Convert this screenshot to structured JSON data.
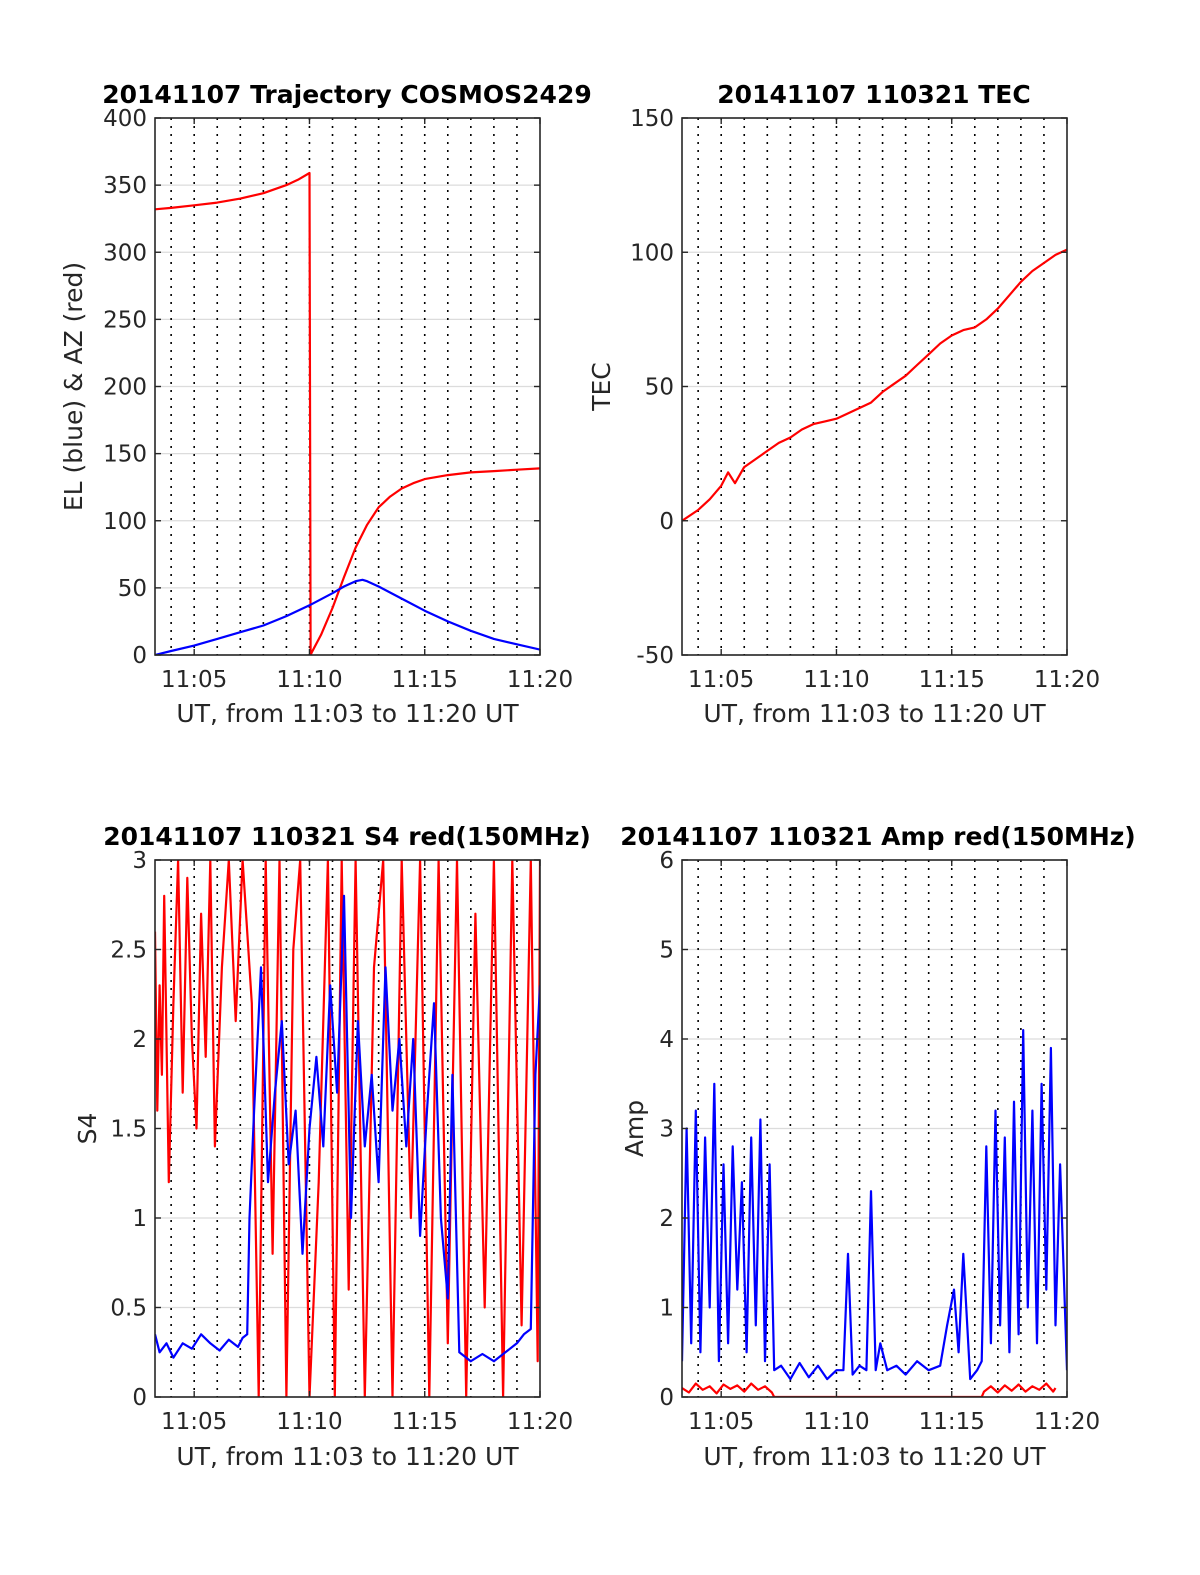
{
  "chart_data": [
    {
      "type": "line",
      "title": "20141107 Trajectory COSMOS2429",
      "xlabel": "UT, from 11:03 to 11:20 UT",
      "ylabel": "EL (blue) & AZ (red)",
      "xlim": [
        3.3,
        20.0
      ],
      "ylim": [
        0,
        400
      ],
      "xticks": [
        5,
        10,
        15,
        20
      ],
      "xtick_labels": [
        "11:05",
        "11:10",
        "11:15",
        "11:20"
      ],
      "yticks": [
        0,
        50,
        100,
        150,
        200,
        250,
        300,
        350,
        400
      ],
      "ytick_labels": [
        "0",
        "50",
        "100",
        "150",
        "200",
        "250",
        "300",
        "350",
        "400"
      ],
      "vgrid_minutes": [
        4,
        5,
        6,
        7,
        8,
        9,
        10,
        11,
        12,
        13,
        14,
        15,
        16,
        17,
        18,
        19
      ],
      "grid": "on",
      "series": [
        {
          "color": "#ff0000",
          "x": [
            3.3,
            4,
            5,
            6,
            7,
            8,
            9,
            9.5,
            10.0,
            10.05,
            10.1,
            10.5,
            11,
            11.5,
            12,
            12.5,
            13,
            13.5,
            14,
            14.5,
            15,
            16,
            17,
            18,
            19,
            20
          ],
          "y": [
            332,
            333,
            335,
            337,
            340,
            344,
            350,
            354,
            359,
            0,
            2,
            15,
            35,
            58,
            80,
            97,
            110,
            118,
            124,
            128,
            131,
            134,
            136,
            137,
            138,
            139
          ]
        },
        {
          "color": "#0000ff",
          "x": [
            3.3,
            4,
            5,
            6,
            7,
            8,
            9,
            10,
            11,
            11.5,
            12,
            12.3,
            12.5,
            13,
            14,
            15,
            16,
            17,
            18,
            19,
            20
          ],
          "y": [
            0,
            3,
            7,
            12,
            17,
            22,
            29,
            37,
            46,
            51,
            55,
            56,
            55,
            51,
            42,
            33,
            25,
            18,
            12,
            8,
            4
          ]
        }
      ]
    },
    {
      "type": "line",
      "title": "20141107 110321 TEC",
      "xlabel": "UT, from 11:03 to 11:20 UT",
      "ylabel": "TEC",
      "xlim": [
        3.3,
        20.0
      ],
      "ylim": [
        -50,
        150
      ],
      "xticks": [
        5,
        10,
        15,
        20
      ],
      "xtick_labels": [
        "11:05",
        "11:10",
        "11:15",
        "11:20"
      ],
      "yticks": [
        -50,
        0,
        50,
        100,
        150
      ],
      "ytick_labels": [
        "-50",
        "0",
        "50",
        "100",
        "150"
      ],
      "vgrid_minutes": [
        4,
        5,
        6,
        7,
        8,
        9,
        10,
        11,
        12,
        13,
        14,
        15,
        16,
        17,
        18,
        19
      ],
      "grid": "on",
      "series": [
        {
          "color": "#ff0000",
          "x": [
            3.3,
            4,
            4.5,
            5,
            5.3,
            5.6,
            6,
            6.5,
            7,
            7.5,
            8,
            8.5,
            9,
            9.5,
            10,
            10.5,
            11,
            11.5,
            12,
            12.5,
            13,
            13.5,
            14,
            14.5,
            15,
            15.5,
            16,
            16.5,
            17,
            17.5,
            18,
            18.5,
            19,
            19.5,
            20
          ],
          "y": [
            0,
            4,
            8,
            13,
            18,
            14,
            20,
            23,
            26,
            29,
            31,
            34,
            36,
            37,
            38,
            40,
            42,
            44,
            48,
            51,
            54,
            58,
            62,
            66,
            69,
            71,
            72,
            75,
            79,
            84,
            89,
            93,
            96,
            99,
            101
          ]
        }
      ]
    },
    {
      "type": "line",
      "title": "20141107 110321 S4 red(150MHz)",
      "xlabel": "UT, from 11:03 to 11:20 UT",
      "ylabel": "S4",
      "xlim": [
        3.3,
        20.0
      ],
      "ylim": [
        0,
        3
      ],
      "xticks": [
        5,
        10,
        15,
        20
      ],
      "xtick_labels": [
        "11:05",
        "11:10",
        "11:15",
        "11:20"
      ],
      "yticks": [
        0,
        0.5,
        1,
        1.5,
        2,
        2.5,
        3
      ],
      "ytick_labels": [
        "0",
        "0.5",
        "1",
        "1.5",
        "2",
        "2.5",
        "3"
      ],
      "vgrid_minutes": [
        4,
        5,
        6,
        7,
        8,
        9,
        10,
        11,
        12,
        13,
        14,
        15,
        16,
        17,
        18,
        19
      ],
      "grid": "on",
      "series": [
        {
          "color": "#ff0000",
          "x": [
            3.3,
            3.4,
            3.5,
            3.6,
            3.7,
            3.9,
            4.1,
            4.3,
            4.5,
            4.7,
            4.9,
            5.1,
            5.3,
            5.5,
            5.7,
            5.9,
            6.2,
            6.5,
            6.8,
            7.1,
            7.5,
            7.8,
            8.1,
            8.4,
            8.7,
            9.0,
            9.3,
            9.6,
            10.0,
            10.4,
            10.8,
            11.1,
            11.4,
            11.7,
            12.0,
            12.4,
            12.8,
            13.2,
            13.6,
            14.0,
            14.4,
            14.8,
            15.2,
            15.6,
            16.0,
            16.4,
            16.8,
            17.2,
            17.6,
            18.0,
            18.4,
            18.8,
            19.2,
            19.6,
            19.9,
            20.0
          ],
          "y": [
            2.6,
            1.6,
            2.3,
            1.8,
            2.8,
            1.2,
            2.2,
            3,
            1.7,
            2.9,
            2.0,
            1.5,
            2.7,
            1.9,
            3,
            1.4,
            2.4,
            3,
            2.1,
            3,
            2.2,
            0,
            3,
            0.8,
            3,
            0,
            2.5,
            3,
            0,
            1.2,
            3,
            0,
            3,
            0.6,
            3,
            0,
            2.4,
            3,
            0,
            3,
            1.0,
            3,
            0,
            3,
            0.3,
            3,
            0,
            2.7,
            0.5,
            3,
            0,
            3,
            0.4,
            3,
            0.2,
            3
          ]
        },
        {
          "color": "#0000ff",
          "x": [
            3.3,
            3.5,
            3.8,
            4.1,
            4.5,
            4.9,
            5.3,
            5.7,
            6.1,
            6.5,
            6.9,
            7.1,
            7.3,
            7.4,
            7.6,
            7.9,
            8.2,
            8.5,
            8.8,
            9.1,
            9.4,
            9.7,
            10.0,
            10.3,
            10.6,
            10.9,
            11.2,
            11.5,
            11.8,
            12.1,
            12.4,
            12.7,
            13.0,
            13.3,
            13.6,
            13.9,
            14.2,
            14.5,
            14.8,
            15.1,
            15.4,
            15.7,
            16.0,
            16.2,
            16.5,
            17.0,
            17.5,
            18.0,
            18.5,
            19.0,
            19.3,
            19.6,
            19.8,
            20.0
          ],
          "y": [
            0.35,
            0.25,
            0.3,
            0.22,
            0.3,
            0.27,
            0.35,
            0.3,
            0.26,
            0.32,
            0.28,
            0.33,
            0.35,
            1.0,
            1.6,
            2.4,
            1.2,
            1.7,
            2.1,
            1.3,
            1.6,
            0.8,
            1.5,
            1.9,
            1.4,
            2.3,
            1.7,
            2.8,
            1.0,
            2.1,
            1.4,
            1.8,
            1.2,
            2.4,
            1.6,
            2.0,
            1.4,
            2.0,
            0.9,
            1.6,
            2.2,
            1.0,
            0.55,
            1.8,
            0.25,
            0.2,
            0.24,
            0.2,
            0.25,
            0.3,
            0.35,
            0.38,
            1.8,
            2.3
          ]
        }
      ]
    },
    {
      "type": "line",
      "title": "20141107 110321 Amp red(150MHz)",
      "xlabel": "UT, from 11:03 to 11:20 UT",
      "ylabel": "Amp",
      "xlim": [
        3.3,
        20.0
      ],
      "ylim": [
        0,
        6
      ],
      "xticks": [
        5,
        10,
        15,
        20
      ],
      "xtick_labels": [
        "11:05",
        "11:10",
        "11:15",
        "11:20"
      ],
      "yticks": [
        0,
        1,
        2,
        3,
        4,
        5,
        6
      ],
      "ytick_labels": [
        "0",
        "1",
        "2",
        "3",
        "4",
        "5",
        "6"
      ],
      "vgrid_minutes": [
        4,
        5,
        6,
        7,
        8,
        9,
        10,
        11,
        12,
        13,
        14,
        15,
        16,
        17,
        18,
        19
      ],
      "grid": "on",
      "series": [
        {
          "color": "#ff0000",
          "x": [
            3.3,
            3.6,
            3.9,
            4.2,
            4.5,
            4.8,
            5.1,
            5.4,
            5.7,
            6.0,
            6.3,
            6.6,
            6.9,
            7.2,
            7.3,
            16.3,
            16.4,
            16.7,
            17.0,
            17.3,
            17.6,
            17.9,
            18.2,
            18.5,
            18.8,
            19.1,
            19.4,
            19.5
          ],
          "y": [
            0.1,
            0.05,
            0.15,
            0.08,
            0.12,
            0.04,
            0.14,
            0.09,
            0.13,
            0.06,
            0.15,
            0.08,
            0.12,
            0.05,
            0.0,
            0.0,
            0.06,
            0.12,
            0.05,
            0.13,
            0.07,
            0.14,
            0.06,
            0.12,
            0.08,
            0.15,
            0.06,
            0.1
          ]
        },
        {
          "color": "#0000ff",
          "x": [
            3.3,
            3.5,
            3.7,
            3.9,
            4.1,
            4.3,
            4.5,
            4.7,
            4.9,
            5.1,
            5.3,
            5.5,
            5.7,
            5.9,
            6.1,
            6.3,
            6.5,
            6.7,
            6.9,
            7.1,
            7.3,
            7.6,
            8.0,
            8.4,
            8.8,
            9.2,
            9.6,
            10.0,
            10.3,
            10.5,
            10.7,
            11.0,
            11.3,
            11.5,
            11.7,
            11.9,
            12.2,
            12.6,
            13.0,
            13.5,
            14.0,
            14.5,
            14.8,
            15.1,
            15.3,
            15.5,
            15.8,
            16.1,
            16.3,
            16.5,
            16.7,
            16.9,
            17.1,
            17.3,
            17.5,
            17.7,
            17.9,
            18.1,
            18.3,
            18.5,
            18.7,
            18.9,
            19.1,
            19.3,
            19.5,
            19.7,
            20.0
          ],
          "y": [
            0.4,
            3.0,
            0.6,
            3.2,
            0.5,
            2.9,
            1.0,
            3.5,
            0.4,
            2.6,
            0.6,
            2.8,
            1.2,
            2.4,
            0.5,
            2.9,
            0.8,
            3.1,
            0.4,
            2.6,
            0.3,
            0.35,
            0.2,
            0.38,
            0.22,
            0.35,
            0.2,
            0.3,
            0.3,
            1.6,
            0.25,
            0.35,
            0.3,
            2.3,
            0.3,
            0.6,
            0.3,
            0.35,
            0.25,
            0.4,
            0.3,
            0.35,
            0.8,
            1.2,
            0.5,
            1.6,
            0.2,
            0.3,
            0.4,
            2.8,
            0.6,
            3.2,
            0.8,
            2.9,
            0.5,
            3.3,
            0.7,
            4.1,
            1.0,
            3.2,
            0.6,
            3.5,
            1.2,
            3.9,
            0.8,
            2.6,
            0.3
          ]
        }
      ]
    }
  ]
}
